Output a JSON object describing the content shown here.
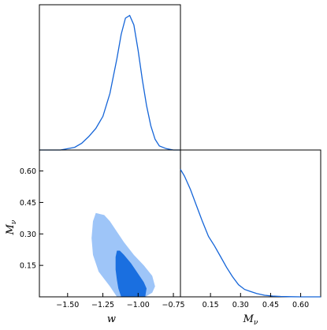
{
  "chart_data": [
    {
      "type": "line",
      "panel": "marginal-w",
      "title": "",
      "xlabel": "",
      "ylabel": "",
      "xlim": [
        -1.7,
        -0.7
      ],
      "ylim": [
        0,
        1.08
      ],
      "series": [
        {
          "x": [
            -1.7,
            -1.55,
            -1.45,
            -1.4,
            -1.35,
            -1.3,
            -1.25,
            -1.2,
            -1.15,
            -1.12,
            -1.09,
            -1.06,
            -1.03,
            -1.0,
            -0.97,
            -0.94,
            -0.91,
            -0.88,
            -0.85,
            -0.8,
            -0.75,
            -0.7
          ],
          "y": [
            0.0,
            0.0,
            0.02,
            0.05,
            0.1,
            0.16,
            0.25,
            0.42,
            0.68,
            0.86,
            0.98,
            1.0,
            0.93,
            0.74,
            0.52,
            0.33,
            0.18,
            0.08,
            0.03,
            0.01,
            0.0,
            0.0
          ]
        }
      ]
    },
    {
      "type": "contour",
      "panel": "joint-w-mnu",
      "xlabel": "w",
      "ylabel": "M_ν",
      "xlim": [
        -1.7,
        -0.7
      ],
      "ylim": [
        0.0,
        0.7
      ],
      "xticks": [
        "−1.50",
        "−1.25",
        "−1.00",
        "−0.75"
      ],
      "yticks": [
        "0.15",
        "0.30",
        "0.45",
        "0.60"
      ],
      "levels": [
        {
          "level": "outer",
          "color": "#9ec5f8",
          "x": [
            -1.05,
            -1.0,
            -0.95,
            -0.9,
            -0.88,
            -0.9,
            -0.96,
            -1.03,
            -1.1,
            -1.16,
            -1.2,
            -1.24,
            -1.3,
            -1.32,
            -1.33,
            -1.32,
            -1.28,
            -1.2,
            -1.15,
            -1.1
          ],
          "y": [
            0.0,
            0.0,
            0.0,
            0.02,
            0.05,
            0.1,
            0.15,
            0.2,
            0.26,
            0.32,
            0.36,
            0.39,
            0.4,
            0.36,
            0.28,
            0.2,
            0.12,
            0.05,
            0.0,
            0.0
          ]
        },
        {
          "level": "inner",
          "color": "#1a6fe0",
          "x": [
            -1.12,
            -0.95,
            -0.94,
            -0.96,
            -1.0,
            -1.05,
            -1.1,
            -1.13,
            -1.15,
            -1.16,
            -1.16,
            -1.15,
            -1.14,
            -1.13
          ],
          "y": [
            0.0,
            0.0,
            0.04,
            0.07,
            0.11,
            0.16,
            0.2,
            0.22,
            0.22,
            0.19,
            0.13,
            0.08,
            0.04,
            0.02
          ]
        }
      ]
    },
    {
      "type": "line",
      "panel": "marginal-mnu",
      "title": "",
      "xlabel": "M_ν",
      "ylabel": "",
      "xlim": [
        0.0,
        0.7
      ],
      "ylim": [
        0,
        1.0
      ],
      "xticks": [
        "0.15",
        "0.30",
        "0.45",
        "0.60"
      ],
      "series": [
        {
          "x": [
            0.0,
            0.02,
            0.05,
            0.08,
            0.11,
            0.14,
            0.17,
            0.2,
            0.23,
            0.26,
            0.29,
            0.32,
            0.35,
            0.38,
            0.42,
            0.46,
            0.5,
            0.55,
            0.6,
            0.65,
            0.7
          ],
          "y": [
            0.95,
            0.9,
            0.8,
            0.68,
            0.56,
            0.45,
            0.38,
            0.3,
            0.22,
            0.15,
            0.09,
            0.055,
            0.04,
            0.025,
            0.012,
            0.006,
            0.003,
            0.001,
            0.0,
            0.0,
            0.0
          ]
        }
      ]
    }
  ]
}
